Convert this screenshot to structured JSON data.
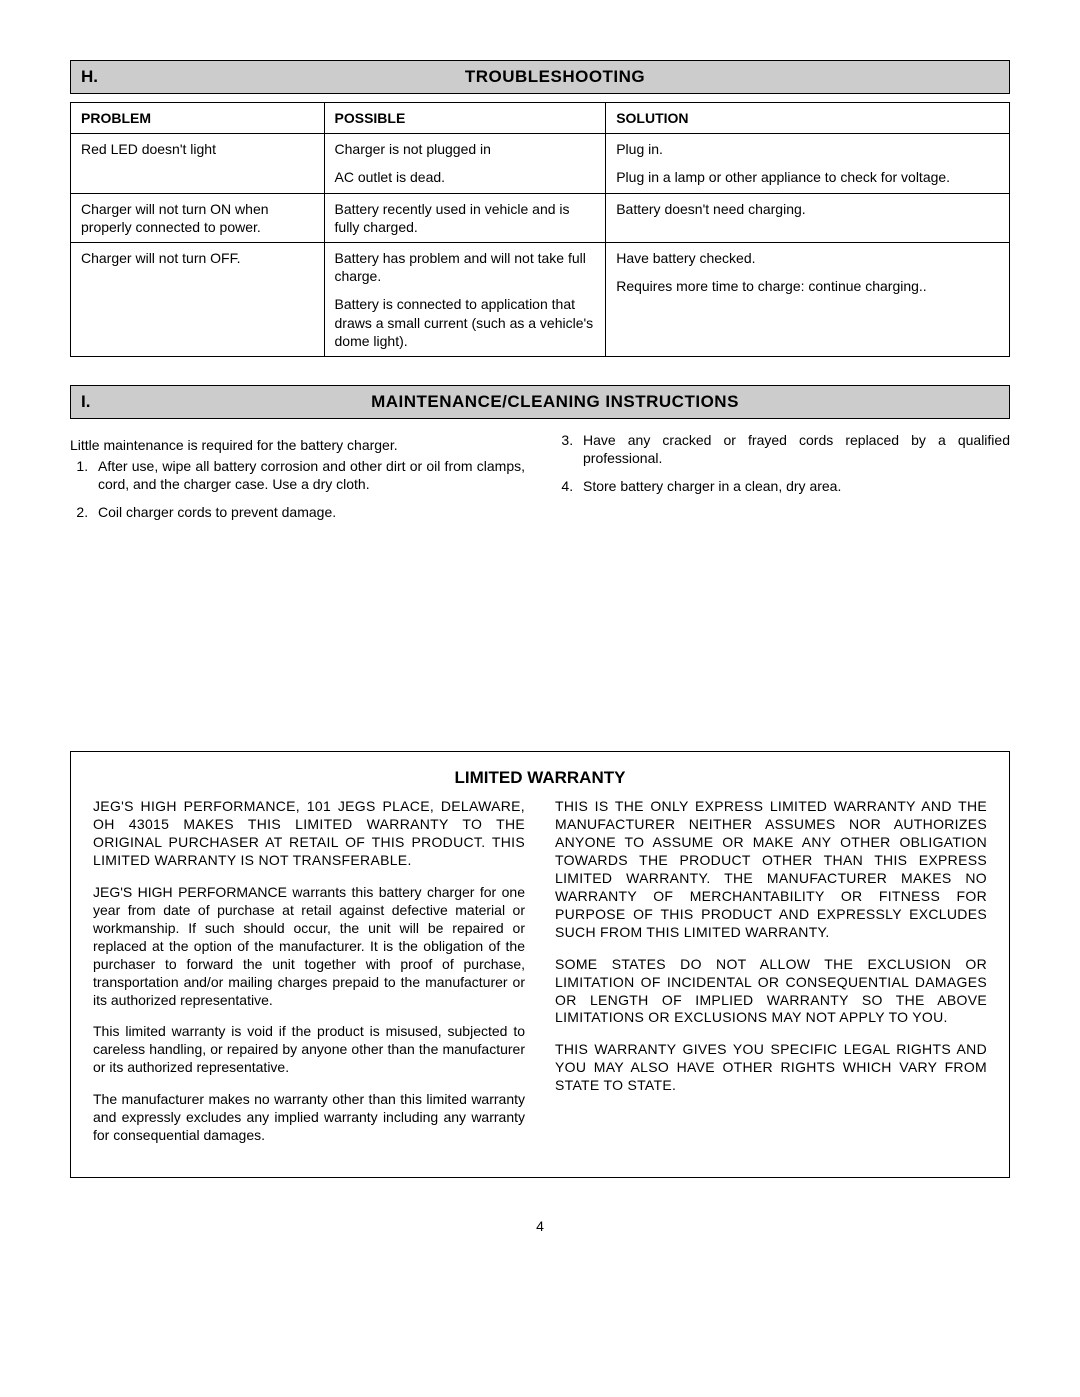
{
  "sections": {
    "troubleshooting": {
      "letter": "H.",
      "title": "TROUBLESHOOTING"
    },
    "maintenance": {
      "letter": "I.",
      "title": "MAINTENANCE/CLEANING INSTRUCTIONS"
    }
  },
  "troubleTable": {
    "headers": {
      "problem": "PROBLEM",
      "possible": "POSSIBLE",
      "solution": "SOLUTION"
    },
    "rows": [
      {
        "problem": "Red LED doesn't light",
        "possible": [
          "Charger is not plugged in",
          "AC outlet is dead."
        ],
        "solution": [
          "Plug in.",
          "Plug in a lamp or other appliance to check for voltage."
        ]
      },
      {
        "problem": "Charger will not turn ON when properly connected to power.",
        "possible": [
          "Battery recently used in vehicle and is fully charged."
        ],
        "solution": [
          "Battery doesn't need charging."
        ]
      },
      {
        "problem": "Charger will not turn OFF.",
        "possible": [
          "Battery has problem and will not take full charge.",
          "Battery is connected to application that draws a small current (such as a vehicle's dome light)."
        ],
        "solution": [
          "Have battery checked.",
          "Requires more time to charge: continue charging.."
        ]
      }
    ]
  },
  "maintenance": {
    "intro": "Little maintenance is required for the battery charger.",
    "items": [
      "After use, wipe all battery corrosion and other dirt or oil from clamps, cord, and the charger case. Use a dry cloth.",
      "Coil charger cords to prevent damage.",
      "Have any cracked or frayed cords replaced by a qualified professional.",
      "Store battery charger in a clean, dry area."
    ]
  },
  "warranty": {
    "title": "LIMITED WARRANTY",
    "left": [
      "JEG'S HIGH PERFORMANCE, 101 JEGS PLACE, DELAWARE, OH 43015 MAKES THIS LIMITED WARRANTY TO THE ORIGINAL PURCHASER AT RETAIL OF THIS PRODUCT. THIS LIMITED WARRANTY IS NOT TRANSFERABLE.",
      "JEG'S HIGH PERFORMANCE warrants this battery charger for one year from date of purchase at retail against defective material or workmanship. If such should occur, the unit will be repaired or replaced at the option of the manufacturer. It is the obligation of the purchaser to forward the unit together with proof of purchase, transportation and/or mailing charges prepaid to the manufacturer or its authorized representative.",
      "This limited warranty is void if the product is misused, subjected to careless handling, or repaired by anyone other than the manufacturer or its authorized representative.",
      "The manufacturer makes no warranty other than this limited warranty and expressly excludes any implied warranty including any warranty for consequential damages."
    ],
    "right": [
      "THIS IS THE ONLY EXPRESS LIMITED WARRANTY AND THE MANUFACTURER NEITHER ASSUMES NOR AUTHORIZES ANYONE TO ASSUME OR MAKE ANY OTHER OBLIGATION TOWARDS THE PRODUCT OTHER THAN THIS EXPRESS LIMITED WARRANTY. THE MANUFACTURER MAKES NO WARRANTY OF MERCHANTABILITY OR FITNESS FOR PURPOSE OF THIS PRODUCT AND EXPRESSLY EXCLUDES SUCH FROM THIS LIMITED WARRANTY.",
      "SOME STATES DO NOT ALLOW THE EXCLUSION OR LIMITATION OF INCIDENTAL OR CONSEQUENTIAL DAMAGES OR LENGTH OF IMPLIED WARRANTY SO THE ABOVE LIMITATIONS OR EXCLUSIONS MAY NOT APPLY TO YOU.",
      "THIS WARRANTY GIVES YOU SPECIFIC LEGAL RIGHTS AND YOU MAY ALSO HAVE OTHER RIGHTS WHICH VARY FROM STATE TO STATE."
    ]
  },
  "pageNumber": "4"
}
